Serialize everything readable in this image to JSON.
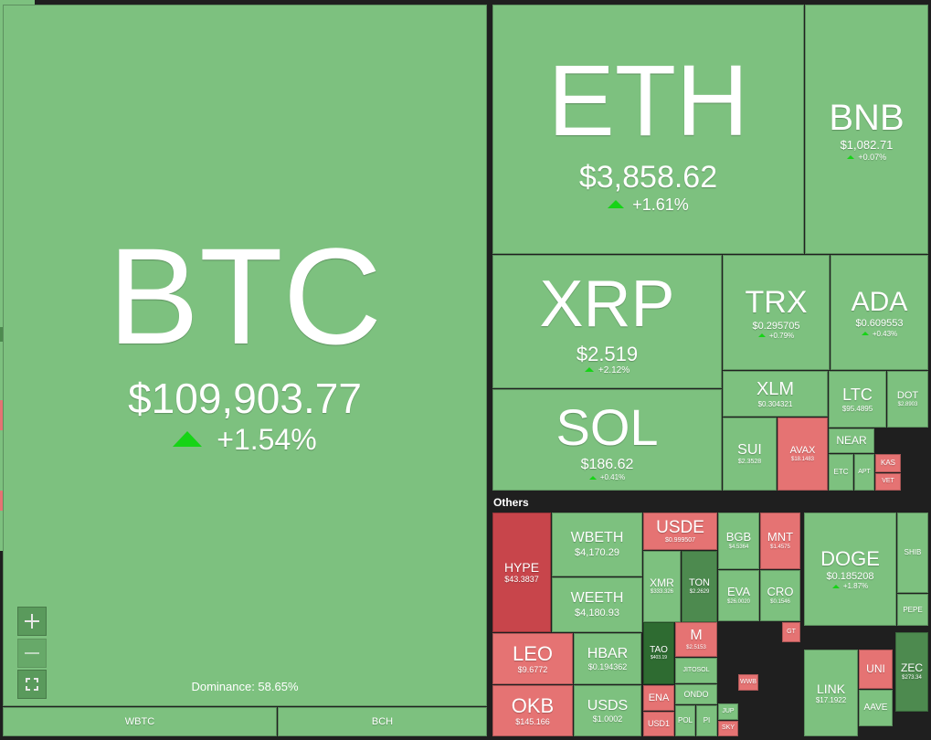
{
  "others_label": "Others",
  "dominance": "Dominance: 58.65%",
  "tiles": [
    {
      "symbol": "BTC",
      "price": "$109,903.77",
      "change": "+1.54%"
    },
    {
      "symbol": "ETH",
      "price": "$3,858.62",
      "change": "+1.61%"
    },
    {
      "symbol": "BNB",
      "price": "$1,082.71",
      "change": "+0.07%"
    },
    {
      "symbol": "XRP",
      "price": "$2.519",
      "change": "+2.12%"
    },
    {
      "symbol": "SOL",
      "price": "$186.62",
      "change": "+0.41%"
    },
    {
      "symbol": "TRX",
      "price": "$0.295705",
      "change": "+0.79%"
    },
    {
      "symbol": "ADA",
      "price": "$0.609553",
      "change": "+0.43%"
    },
    {
      "symbol": "XLM",
      "price": "$0.304321"
    },
    {
      "symbol": "LTC",
      "price": "$95.4895"
    },
    {
      "symbol": "DOT",
      "price": "$2.8903"
    },
    {
      "symbol": "SUI",
      "price": "$2.3528"
    },
    {
      "symbol": "AVAX",
      "price": "$18.1483"
    },
    {
      "symbol": "NEAR"
    },
    {
      "symbol": "ETC"
    },
    {
      "symbol": "APT"
    },
    {
      "symbol": "KAS"
    },
    {
      "symbol": "VET"
    },
    {
      "symbol": "HYPE",
      "price": "$43.3837"
    },
    {
      "symbol": "WBETH",
      "price": "$4,170.29"
    },
    {
      "symbol": "WEETH",
      "price": "$4,180.93"
    },
    {
      "symbol": "USDE",
      "price": "$0.999507"
    },
    {
      "symbol": "XMR",
      "price": "$333.326"
    },
    {
      "symbol": "TON",
      "price": "$2.2629"
    },
    {
      "symbol": "BGB",
      "price": "$4.5364"
    },
    {
      "symbol": "MNT",
      "price": "$1.4575"
    },
    {
      "symbol": "EVA",
      "price": "$26.0020"
    },
    {
      "symbol": "CRO",
      "price": "$0.1546"
    },
    {
      "symbol": "LEO",
      "price": "$9.6772"
    },
    {
      "symbol": "OKB",
      "price": "$145.166"
    },
    {
      "symbol": "HBAR",
      "price": "$0.194362"
    },
    {
      "symbol": "USDS",
      "price": "$1.0002"
    },
    {
      "symbol": "TAO",
      "price": "$403.19"
    },
    {
      "symbol": "M",
      "price": "$2.5153"
    },
    {
      "symbol": "JITOSOL"
    },
    {
      "symbol": "ENA"
    },
    {
      "symbol": "USD1"
    },
    {
      "symbol": "ONDO"
    },
    {
      "symbol": "POL"
    },
    {
      "symbol": "PI"
    },
    {
      "symbol": "DOGE",
      "price": "$0.185208",
      "change": "+1.87%"
    },
    {
      "symbol": "SHIB"
    },
    {
      "symbol": "PEPE"
    },
    {
      "symbol": "LINK",
      "price": "$17.1922"
    },
    {
      "symbol": "UNI"
    },
    {
      "symbol": "AAVE"
    },
    {
      "symbol": "ZEC",
      "price": "$273.34"
    },
    {
      "symbol": "WBTC"
    },
    {
      "symbol": "BCH"
    },
    {
      "symbol": "WWB"
    },
    {
      "symbol": "JUP"
    },
    {
      "symbol": "SKY"
    },
    {
      "symbol": "GT"
    }
  ]
}
